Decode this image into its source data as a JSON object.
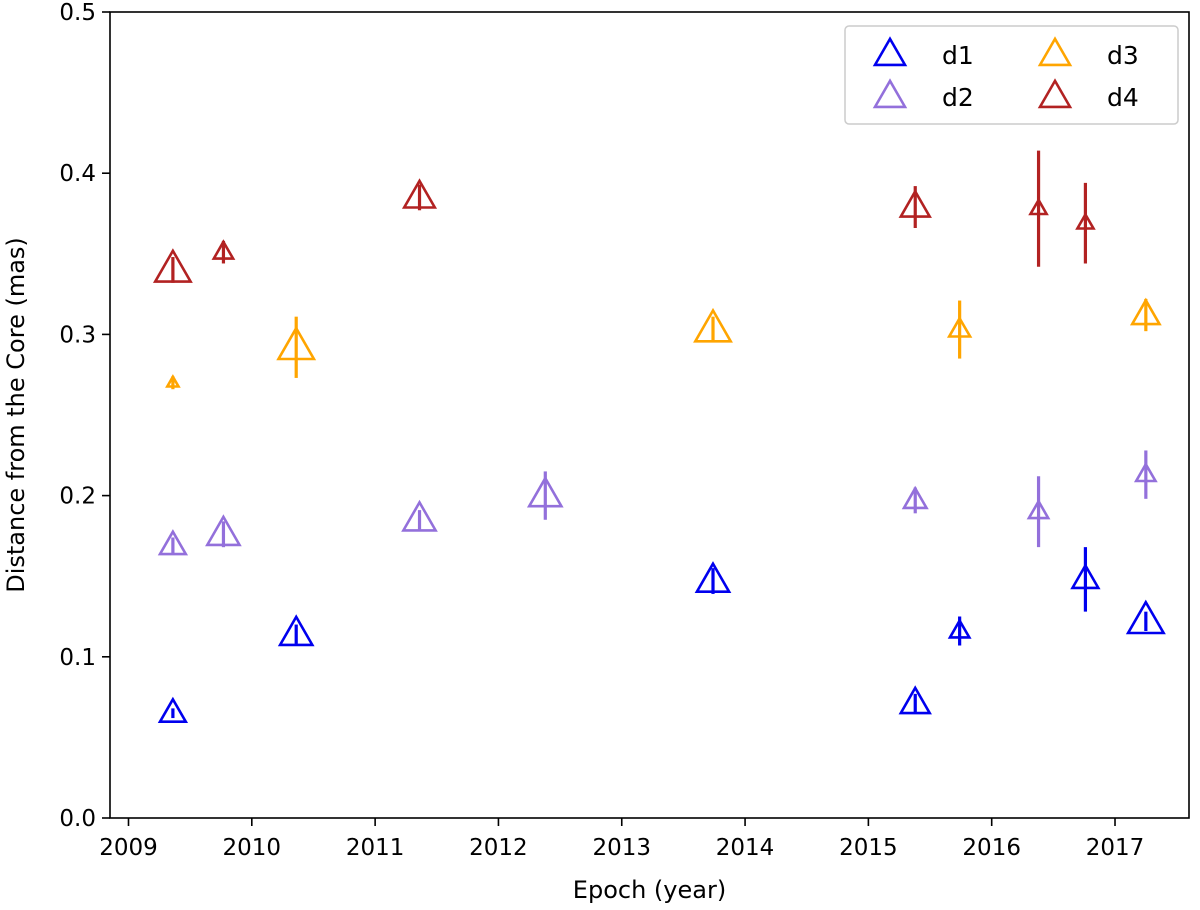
{
  "chart_data": {
    "type": "scatter",
    "title": "",
    "xlabel": "Epoch (year)",
    "ylabel": "Distance from the Core (mas)",
    "xlim": [
      2008.85,
      2017.6
    ],
    "ylim": [
      0.0,
      0.5
    ],
    "xticks": [
      2009,
      2010,
      2011,
      2012,
      2013,
      2014,
      2015,
      2016,
      2017
    ],
    "yticks": [
      0.0,
      0.1,
      0.2,
      0.3,
      0.4,
      0.5
    ],
    "xtick_labels": [
      "2009",
      "2010",
      "2011",
      "2012",
      "2013",
      "2014",
      "2015",
      "2016",
      "2017"
    ],
    "ytick_labels": [
      "0.0",
      "0.1",
      "0.2",
      "0.3",
      "0.4",
      "0.5"
    ],
    "grid": false,
    "legend_position": "top-right",
    "marker": "open-triangle",
    "series": [
      {
        "name": "d1",
        "color": "#0000ee",
        "points": [
          {
            "x": 2009.36,
            "y": 0.065,
            "err": 0.003,
            "size": 0.8
          },
          {
            "x": 2010.36,
            "y": 0.114,
            "err": 0.006,
            "size": 1.0
          },
          {
            "x": 2013.74,
            "y": 0.147,
            "err": 0.008,
            "size": 1.0
          },
          {
            "x": 2015.38,
            "y": 0.071,
            "err": 0.006,
            "size": 0.9
          },
          {
            "x": 2015.74,
            "y": 0.116,
            "err": 0.009,
            "size": 0.6
          },
          {
            "x": 2016.76,
            "y": 0.148,
            "err": 0.02,
            "size": 0.8
          },
          {
            "x": 2017.25,
            "y": 0.122,
            "err": 0.006,
            "size": 1.1
          }
        ]
      },
      {
        "name": "d2",
        "color": "#9370db",
        "points": [
          {
            "x": 2009.36,
            "y": 0.169,
            "err": 0.005,
            "size": 0.8
          },
          {
            "x": 2009.77,
            "y": 0.176,
            "err": 0.008,
            "size": 1.0
          },
          {
            "x": 2011.36,
            "y": 0.185,
            "err": 0.006,
            "size": 1.0
          },
          {
            "x": 2012.38,
            "y": 0.2,
            "err": 0.015,
            "size": 1.0
          },
          {
            "x": 2015.38,
            "y": 0.197,
            "err": 0.008,
            "size": 0.7
          },
          {
            "x": 2016.38,
            "y": 0.19,
            "err": 0.022,
            "size": 0.6
          },
          {
            "x": 2017.25,
            "y": 0.213,
            "err": 0.015,
            "size": 0.6
          }
        ]
      },
      {
        "name": "d3",
        "color": "#ffa500",
        "points": [
          {
            "x": 2009.36,
            "y": 0.27,
            "err": 0.004,
            "size": 0.35
          },
          {
            "x": 2010.36,
            "y": 0.292,
            "err": 0.019,
            "size": 1.1
          },
          {
            "x": 2013.74,
            "y": 0.303,
            "err": 0.008,
            "size": 1.1
          },
          {
            "x": 2015.74,
            "y": 0.303,
            "err": 0.018,
            "size": 0.65
          },
          {
            "x": 2017.25,
            "y": 0.312,
            "err": 0.01,
            "size": 0.85
          }
        ]
      },
      {
        "name": "d4",
        "color": "#b22222",
        "points": [
          {
            "x": 2009.36,
            "y": 0.34,
            "err": 0.008,
            "size": 1.1
          },
          {
            "x": 2009.77,
            "y": 0.351,
            "err": 0.007,
            "size": 0.6
          },
          {
            "x": 2011.36,
            "y": 0.385,
            "err": 0.008,
            "size": 0.95
          },
          {
            "x": 2015.38,
            "y": 0.379,
            "err": 0.013,
            "size": 0.9
          },
          {
            "x": 2016.38,
            "y": 0.378,
            "err": 0.036,
            "size": 0.5
          },
          {
            "x": 2016.76,
            "y": 0.369,
            "err": 0.025,
            "size": 0.5
          }
        ]
      }
    ]
  }
}
